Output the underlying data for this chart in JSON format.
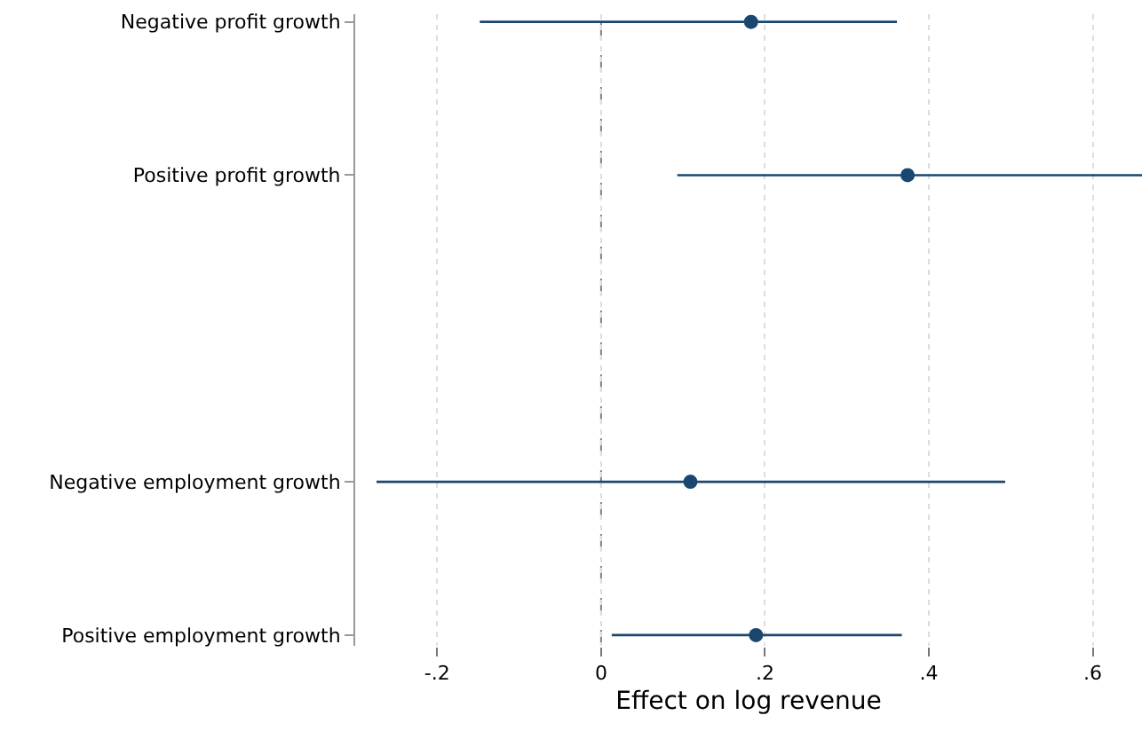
{
  "chart_data": {
    "type": "scatter",
    "orientation": "horizontal",
    "categories": [
      "Negative profit growth",
      "Positive profit growth",
      null,
      "Negative employment growth",
      "Positive employment growth"
    ],
    "values": [
      0.183,
      0.374,
      null,
      0.109,
      0.189
    ],
    "errors": [
      [
        -0.148,
        0.361
      ],
      [
        0.093,
        0.66
      ],
      null,
      [
        -0.274,
        0.493
      ],
      [
        0.013,
        0.367
      ]
    ],
    "color": "#1a476f",
    "marker": "circle",
    "xlabel": "Effect on log revenue",
    "xlim": [
      -0.3,
      0.66
    ],
    "xticks": [
      {
        "value": -0.2,
        "label": "-.2"
      },
      {
        "value": 0,
        "label": "0"
      },
      {
        "value": 0.2,
        "label": ".2"
      },
      {
        "value": 0.4,
        "label": ".4"
      },
      {
        "value": 0.6,
        "label": ".6"
      }
    ],
    "ref_lines": [
      {
        "axis": "x",
        "value": 0,
        "label": null,
        "color": "#808080",
        "line_style": "dashed"
      }
    ],
    "grid": "x",
    "legend": false
  }
}
